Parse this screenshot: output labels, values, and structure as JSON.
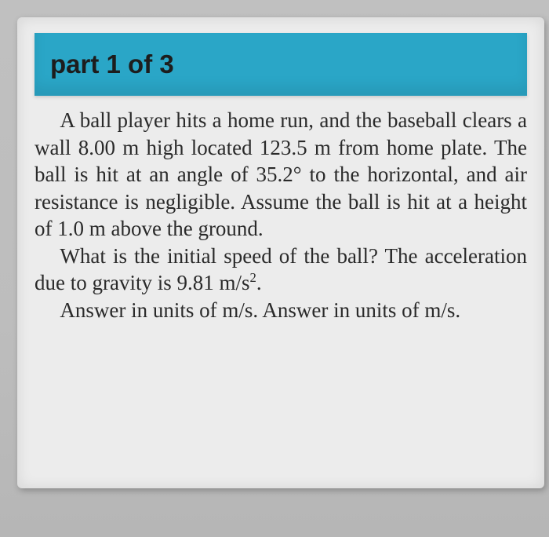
{
  "header": {
    "title": "part 1 of 3",
    "background_color": "#2aa6c7",
    "text_color": "#1d1d1d",
    "fontsize": 33,
    "font_weight": 700
  },
  "card": {
    "background_color": "#ececec"
  },
  "page_background_color": "#b8b8b8",
  "body": {
    "text_color": "#2a2a2a",
    "fontsize": 27,
    "font_family": "Georgia, Times New Roman, serif",
    "paragraphs": {
      "p1": "A ball player hits a home run, and the baseball clears a wall 8.00 m high located 123.5 m from home plate. The ball is hit at an angle of 35.2° to the horizontal, and air resistance is negligible. Assume the ball is hit at a height of 1.0 m above the ground.",
      "p2_pre": "What is the initial speed of the ball? The acceleration due to gravity is 9.81 m/s",
      "p2_sup": "2",
      "p2_post": ".",
      "p3": "Answer in units of m/s. Answer in units of m/s."
    }
  }
}
